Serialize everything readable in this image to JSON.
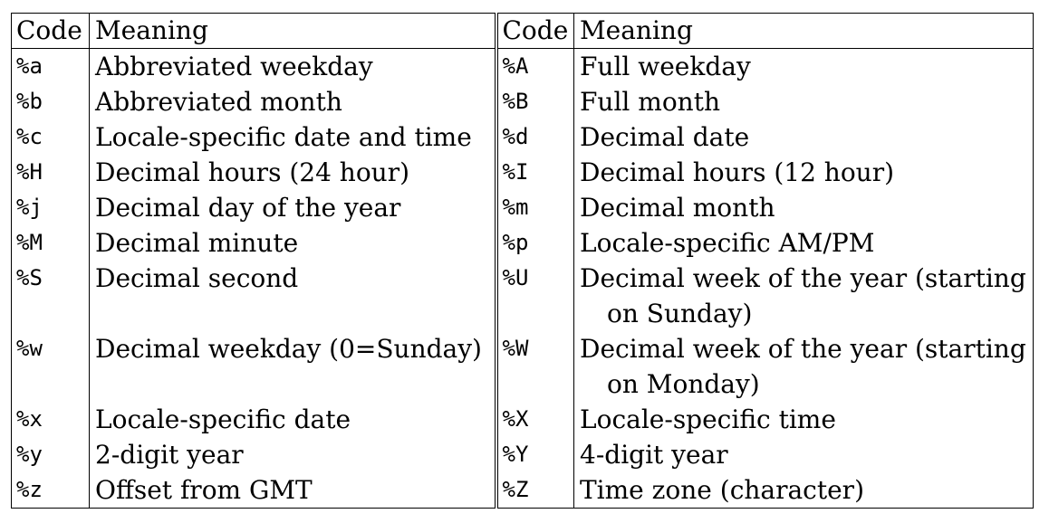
{
  "headers": {
    "code": "Code",
    "meaning": "Meaning"
  },
  "rows": [
    {
      "lcode": "%a",
      "lmeaning": "Abbreviated weekday",
      "rcode": "%A",
      "rmeaning": "Full weekday",
      "rcont": ""
    },
    {
      "lcode": "%b",
      "lmeaning": "Abbreviated month",
      "rcode": "%B",
      "rmeaning": "Full month",
      "rcont": ""
    },
    {
      "lcode": "%c",
      "lmeaning": "Locale-specific date and time",
      "rcode": "%d",
      "rmeaning": "Decimal date",
      "rcont": ""
    },
    {
      "lcode": "%H",
      "lmeaning": "Decimal hours (24 hour)",
      "rcode": "%I",
      "rmeaning": "Decimal hours (12 hour)",
      "rcont": ""
    },
    {
      "lcode": "%j",
      "lmeaning": "Decimal day of the year",
      "rcode": "%m",
      "rmeaning": "Decimal month",
      "rcont": ""
    },
    {
      "lcode": "%M",
      "lmeaning": "Decimal minute",
      "rcode": "%p",
      "rmeaning": "Locale-specific AM/PM",
      "rcont": ""
    },
    {
      "lcode": "%S",
      "lmeaning": "Decimal second",
      "rcode": "%U",
      "rmeaning": "Decimal week of the year (starting",
      "rcont": "on Sunday)"
    },
    {
      "lcode": "%w",
      "lmeaning": "Decimal weekday (0=Sunday)",
      "rcode": "%W",
      "rmeaning": "Decimal week of the year (starting",
      "rcont": "on Monday)"
    },
    {
      "lcode": "%x",
      "lmeaning": "Locale-specific date",
      "rcode": "%X",
      "rmeaning": "Locale-specific time",
      "rcont": ""
    },
    {
      "lcode": "%y",
      "lmeaning": "2-digit year",
      "rcode": "%Y",
      "rmeaning": "4-digit year",
      "rcont": ""
    },
    {
      "lcode": "%z",
      "lmeaning": "Offset from GMT",
      "rcode": "%Z",
      "rmeaning": "Time zone (character)",
      "rcont": ""
    }
  ]
}
